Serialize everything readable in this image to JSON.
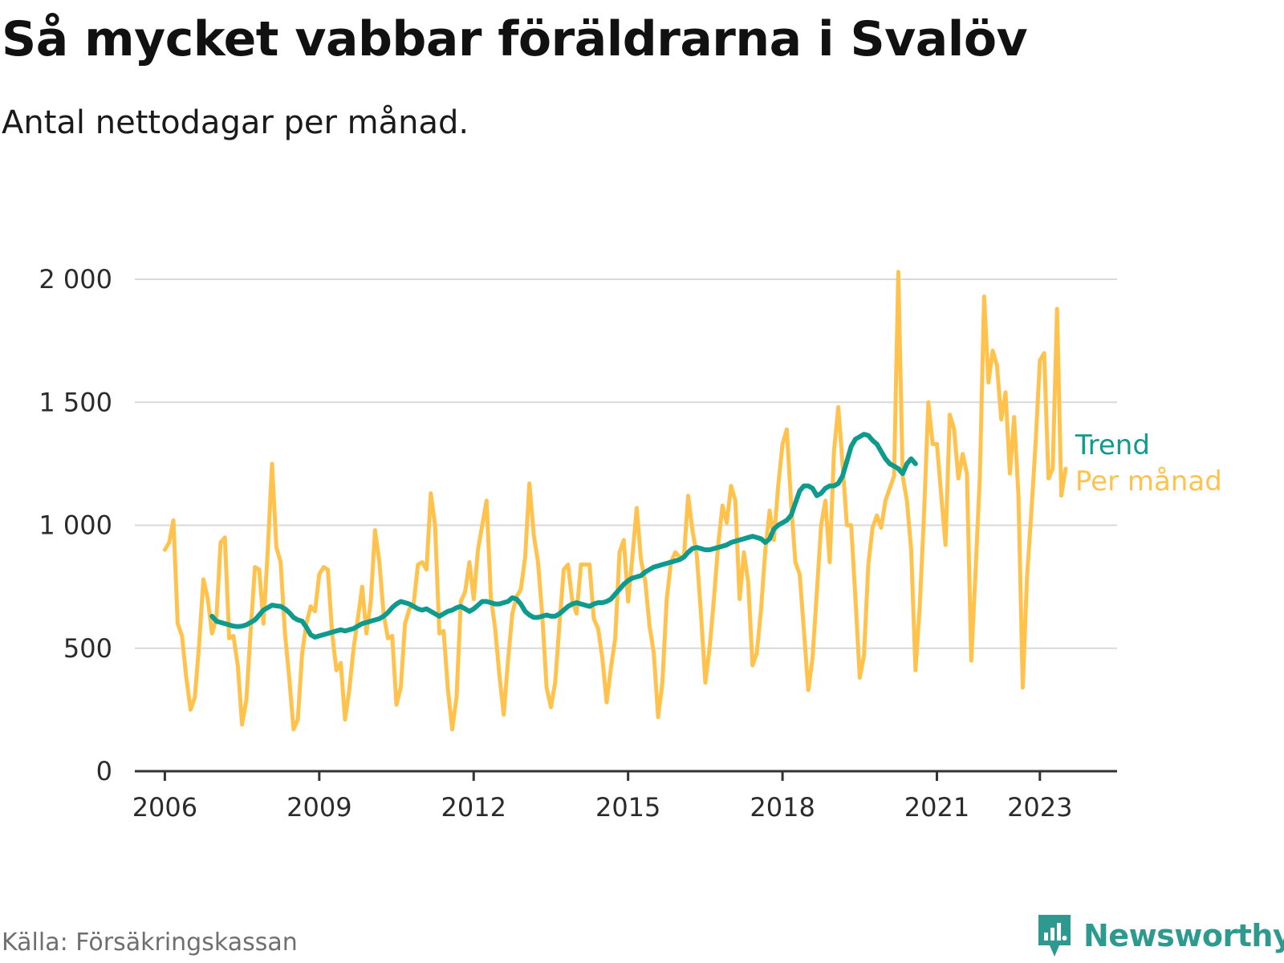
{
  "header": {
    "title": "Så mycket vabbar föräldrarna i Svalöv",
    "subtitle": "Antal nettodagar per månad."
  },
  "footer": {
    "source": "Källa: Försäkringskassan",
    "brand": "Newsworthy"
  },
  "colors": {
    "monthly": "#ffc34d",
    "trend": "#0f9a8e",
    "grid": "#d9d9d9",
    "axis": "#333333",
    "brand": "#2e9a8f"
  },
  "chart_data": {
    "type": "line",
    "x_unit": "month",
    "x_start": "2006-01",
    "xlim": [
      "2005-06",
      "2024-07"
    ],
    "ylim": [
      0,
      2000
    ],
    "y_ticks": [
      0,
      500,
      1000,
      1500,
      2000
    ],
    "y_tick_labels": [
      "0",
      "500",
      "1 000",
      "1 500",
      "2 000"
    ],
    "x_ticks": [
      "2006-01",
      "2009-01",
      "2012-01",
      "2015-01",
      "2018-01",
      "2021-01",
      "2023-01"
    ],
    "x_tick_labels": [
      "2006",
      "2009",
      "2012",
      "2015",
      "2018",
      "2021",
      "2023"
    ],
    "grid": "horizontal",
    "legend_placement": "right end of lines",
    "series": [
      {
        "name": "Per månad",
        "start": "2006-01",
        "values": [
          900,
          930,
          1020,
          600,
          550,
          380,
          250,
          300,
          520,
          780,
          700,
          560,
          620,
          930,
          950,
          540,
          550,
          430,
          190,
          290,
          570,
          830,
          820,
          600,
          900,
          1250,
          910,
          850,
          560,
          380,
          170,
          210,
          480,
          600,
          670,
          650,
          800,
          830,
          820,
          560,
          410,
          440,
          210,
          330,
          500,
          620,
          750,
          560,
          690,
          980,
          850,
          640,
          540,
          550,
          270,
          340,
          600,
          660,
          680,
          840,
          850,
          820,
          1130,
          1000,
          560,
          570,
          330,
          170,
          300,
          690,
          730,
          850,
          700,
          900,
          1000,
          1100,
          710,
          580,
          390,
          230,
          450,
          640,
          710,
          740,
          870,
          1170,
          960,
          850,
          630,
          340,
          260,
          360,
          600,
          820,
          840,
          690,
          640,
          840,
          840,
          840,
          620,
          580,
          460,
          280,
          420,
          540,
          890,
          940,
          690,
          870,
          1070,
          860,
          770,
          590,
          480,
          220,
          360,
          700,
          850,
          890,
          870,
          870,
          1120,
          980,
          880,
          640,
          360,
          500,
          700,
          920,
          1080,
          1010,
          1160,
          1100,
          700,
          890,
          770,
          430,
          480,
          660,
          900,
          1060,
          940,
          1160,
          1330,
          1390,
          1090,
          850,
          800,
          570,
          330,
          460,
          730,
          1000,
          1100,
          850,
          1300,
          1480,
          1250,
          1000,
          1000,
          700,
          380,
          470,
          840,
          990,
          1040,
          990,
          1100,
          1150,
          1200,
          2030,
          1200,
          1100,
          900,
          410,
          670,
          1050,
          1500,
          1330,
          1330,
          1120,
          920,
          1450,
          1390,
          1190,
          1290,
          1210,
          450,
          810,
          1200,
          1930,
          1580,
          1710,
          1650,
          1430,
          1540,
          1210,
          1440,
          1120,
          340,
          790,
          1050,
          1330,
          1670,
          1700,
          1190,
          1230,
          1880,
          1120,
          1230
        ]
      },
      {
        "name": "Trend",
        "start": "2006-12",
        "values": [
          630,
          610,
          605,
          600,
          595,
          590,
          588,
          590,
          595,
          605,
          615,
          635,
          655,
          665,
          675,
          672,
          670,
          660,
          645,
          625,
          615,
          610,
          585,
          555,
          545,
          550,
          555,
          560,
          565,
          570,
          575,
          570,
          575,
          580,
          590,
          600,
          605,
          610,
          615,
          620,
          630,
          645,
          665,
          680,
          690,
          685,
          680,
          670,
          660,
          655,
          660,
          650,
          640,
          630,
          640,
          650,
          655,
          665,
          670,
          660,
          650,
          660,
          675,
          690,
          690,
          685,
          680,
          680,
          685,
          690,
          705,
          700,
          680,
          650,
          635,
          625,
          625,
          630,
          635,
          630,
          630,
          640,
          655,
          670,
          680,
          685,
          680,
          675,
          670,
          680,
          685,
          685,
          690,
          700,
          720,
          740,
          760,
          775,
          785,
          790,
          795,
          810,
          820,
          830,
          835,
          840,
          845,
          850,
          855,
          860,
          870,
          890,
          905,
          910,
          905,
          900,
          900,
          905,
          910,
          915,
          920,
          930,
          935,
          940,
          945,
          950,
          955,
          950,
          945,
          930,
          945,
          985,
          1000,
          1010,
          1020,
          1040,
          1090,
          1140,
          1160,
          1160,
          1150,
          1120,
          1130,
          1150,
          1160,
          1160,
          1170,
          1200,
          1260,
          1320,
          1350,
          1360,
          1370,
          1365,
          1345,
          1330,
          1300,
          1270,
          1250,
          1240,
          1230,
          1210,
          1250,
          1270,
          1250
        ]
      }
    ]
  }
}
